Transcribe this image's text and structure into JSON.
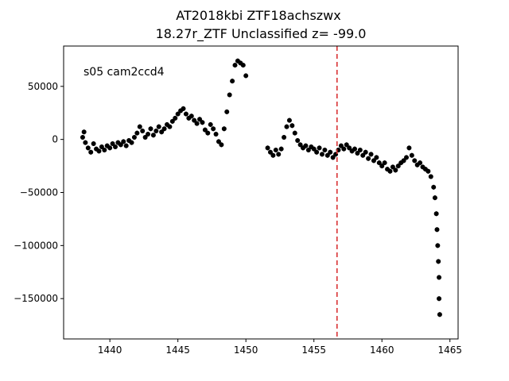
{
  "chart_data": {
    "type": "scatter",
    "title": "AT2018kbi  ZTF18achszwx",
    "subtitle": "18.27r_ZTF Unclassified z= -99.0",
    "annotation": "s05 cam2ccd4",
    "xlabel": "",
    "ylabel": "",
    "xlim": [
      1436.6,
      1465.6
    ],
    "ylim": [
      -188000,
      88000
    ],
    "xticks": [
      1440,
      1445,
      1450,
      1455,
      1460,
      1465
    ],
    "yticks": [
      50000,
      0,
      -50000,
      -100000,
      -150000
    ],
    "ytick_labels": [
      "50000",
      "0",
      "−50000",
      "−100000",
      "−150000"
    ],
    "grid": false,
    "vline": {
      "x": 1456.7,
      "color": "#d62728",
      "style": "dashed"
    },
    "marker_color": "#000000",
    "series": [
      {
        "name": "",
        "points": [
          [
            1438.0,
            2000
          ],
          [
            1438.1,
            7000
          ],
          [
            1438.2,
            -3000
          ],
          [
            1438.4,
            -8000
          ],
          [
            1438.6,
            -12000
          ],
          [
            1438.8,
            -4000
          ],
          [
            1439.0,
            -9000
          ],
          [
            1439.2,
            -11000
          ],
          [
            1439.4,
            -7000
          ],
          [
            1439.6,
            -10000
          ],
          [
            1439.8,
            -6000
          ],
          [
            1440.0,
            -8000
          ],
          [
            1440.2,
            -4000
          ],
          [
            1440.4,
            -7000
          ],
          [
            1440.6,
            -3000
          ],
          [
            1440.8,
            -5000
          ],
          [
            1441.0,
            -2000
          ],
          [
            1441.2,
            -6000
          ],
          [
            1441.4,
            -1000
          ],
          [
            1441.6,
            -3000
          ],
          [
            1441.8,
            2000
          ],
          [
            1442.0,
            6000
          ],
          [
            1442.2,
            12000
          ],
          [
            1442.4,
            8000
          ],
          [
            1442.6,
            2000
          ],
          [
            1442.8,
            5000
          ],
          [
            1443.0,
            10000
          ],
          [
            1443.2,
            4000
          ],
          [
            1443.4,
            8000
          ],
          [
            1443.6,
            12000
          ],
          [
            1443.8,
            7000
          ],
          [
            1444.0,
            10000
          ],
          [
            1444.2,
            14000
          ],
          [
            1444.4,
            12000
          ],
          [
            1444.6,
            17000
          ],
          [
            1444.8,
            20000
          ],
          [
            1445.0,
            24000
          ],
          [
            1445.2,
            27000
          ],
          [
            1445.4,
            29000
          ],
          [
            1445.6,
            24000
          ],
          [
            1445.8,
            20000
          ],
          [
            1446.0,
            22000
          ],
          [
            1446.2,
            18000
          ],
          [
            1446.4,
            15000
          ],
          [
            1446.6,
            19000
          ],
          [
            1446.8,
            16000
          ],
          [
            1447.0,
            9000
          ],
          [
            1447.2,
            6000
          ],
          [
            1447.4,
            14000
          ],
          [
            1447.6,
            10000
          ],
          [
            1447.8,
            5000
          ],
          [
            1448.0,
            -2000
          ],
          [
            1448.2,
            -5000
          ],
          [
            1448.4,
            10000
          ],
          [
            1448.6,
            26000
          ],
          [
            1448.8,
            42000
          ],
          [
            1449.0,
            55000
          ],
          [
            1449.2,
            70000
          ],
          [
            1449.4,
            74000
          ],
          [
            1449.6,
            72000
          ],
          [
            1449.8,
            70000
          ],
          [
            1450.0,
            60000
          ],
          [
            1451.6,
            -8000
          ],
          [
            1451.8,
            -12000
          ],
          [
            1452.0,
            -15000
          ],
          [
            1452.2,
            -10000
          ],
          [
            1452.4,
            -14000
          ],
          [
            1452.6,
            -9000
          ],
          [
            1452.8,
            2000
          ],
          [
            1453.0,
            12000
          ],
          [
            1453.2,
            18000
          ],
          [
            1453.4,
            13000
          ],
          [
            1453.6,
            6000
          ],
          [
            1453.8,
            -1000
          ],
          [
            1454.0,
            -5000
          ],
          [
            1454.2,
            -8000
          ],
          [
            1454.4,
            -6000
          ],
          [
            1454.6,
            -10000
          ],
          [
            1454.8,
            -7000
          ],
          [
            1455.0,
            -9000
          ],
          [
            1455.2,
            -12000
          ],
          [
            1455.4,
            -8000
          ],
          [
            1455.6,
            -14000
          ],
          [
            1455.8,
            -10000
          ],
          [
            1456.0,
            -15000
          ],
          [
            1456.2,
            -12000
          ],
          [
            1456.4,
            -17000
          ],
          [
            1456.6,
            -14000
          ],
          [
            1456.8,
            -10000
          ],
          [
            1457.0,
            -6000
          ],
          [
            1457.2,
            -9000
          ],
          [
            1457.4,
            -5000
          ],
          [
            1457.6,
            -8000
          ],
          [
            1457.8,
            -11000
          ],
          [
            1458.0,
            -9000
          ],
          [
            1458.2,
            -13000
          ],
          [
            1458.4,
            -10000
          ],
          [
            1458.6,
            -15000
          ],
          [
            1458.8,
            -12000
          ],
          [
            1459.0,
            -18000
          ],
          [
            1459.2,
            -14000
          ],
          [
            1459.4,
            -20000
          ],
          [
            1459.6,
            -17000
          ],
          [
            1459.8,
            -22000
          ],
          [
            1460.0,
            -25000
          ],
          [
            1460.2,
            -22000
          ],
          [
            1460.4,
            -28000
          ],
          [
            1460.6,
            -30000
          ],
          [
            1460.8,
            -26000
          ],
          [
            1461.0,
            -29000
          ],
          [
            1461.2,
            -25000
          ],
          [
            1461.4,
            -22000
          ],
          [
            1461.6,
            -20000
          ],
          [
            1461.8,
            -17000
          ],
          [
            1462.0,
            -8000
          ],
          [
            1462.2,
            -15000
          ],
          [
            1462.4,
            -20000
          ],
          [
            1462.6,
            -24000
          ],
          [
            1462.8,
            -22000
          ],
          [
            1463.0,
            -26000
          ],
          [
            1463.2,
            -28000
          ],
          [
            1463.4,
            -30000
          ],
          [
            1463.6,
            -35000
          ],
          [
            1463.8,
            -45000
          ],
          [
            1463.9,
            -55000
          ],
          [
            1464.0,
            -70000
          ],
          [
            1464.05,
            -85000
          ],
          [
            1464.1,
            -100000
          ],
          [
            1464.15,
            -115000
          ],
          [
            1464.2,
            -130000
          ],
          [
            1464.2,
            -150000
          ],
          [
            1464.25,
            -165000
          ]
        ]
      }
    ]
  }
}
